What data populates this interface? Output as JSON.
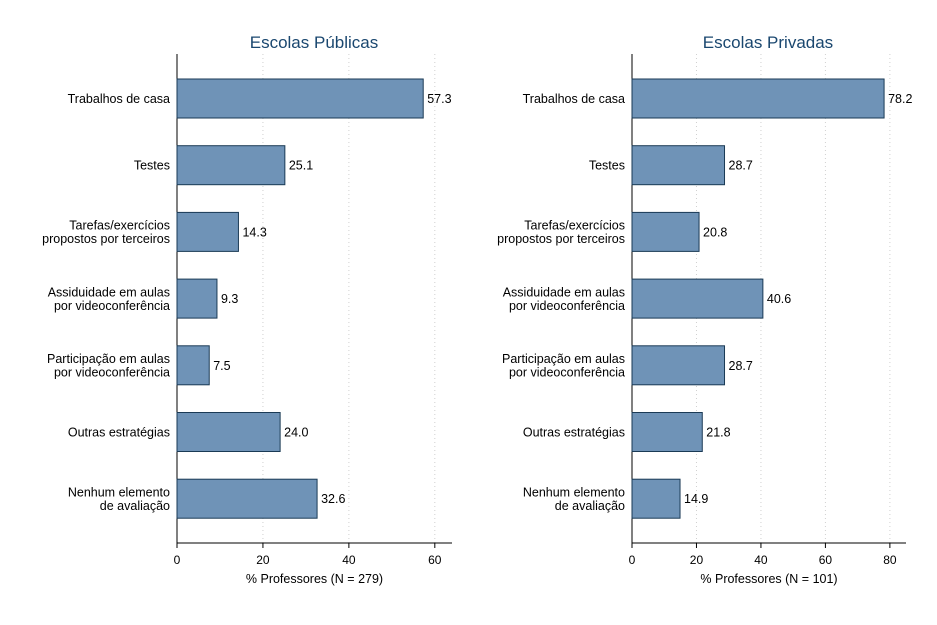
{
  "chart_data": [
    {
      "type": "bar",
      "orientation": "horizontal",
      "title": "Escolas Públicas",
      "xlabel": "% Professores (N = 279)",
      "categories": [
        [
          "Trabalhos de casa"
        ],
        [
          "Testes"
        ],
        [
          "Tarefas/exercícios",
          "propostos por terceiros"
        ],
        [
          "Assiduidade em aulas",
          "por videoconferência"
        ],
        [
          "Participação em aulas",
          "por videoconferência"
        ],
        [
          "Outras estratégias"
        ],
        [
          "Nenhum elemento",
          "de avaliação"
        ]
      ],
      "values": [
        57.3,
        25.1,
        14.3,
        9.3,
        7.5,
        24.0,
        32.6
      ],
      "value_labels": [
        "57.3",
        "25.1",
        "14.3",
        "9.3",
        "7.5",
        "24.0",
        "32.6"
      ],
      "xlim": [
        0,
        64
      ],
      "xticks": [
        0,
        20,
        40,
        60
      ],
      "grid": "vertical dotted",
      "bar_color": "#6f93b7"
    },
    {
      "type": "bar",
      "orientation": "horizontal",
      "title": "Escolas Privadas",
      "xlabel": "% Professores (N = 101)",
      "categories": [
        [
          "Trabalhos de casa"
        ],
        [
          "Testes"
        ],
        [
          "Tarefas/exercícios",
          "propostos por terceiros"
        ],
        [
          "Assiduidade em aulas",
          "por videoconferência"
        ],
        [
          "Participação em aulas",
          "por videoconferência"
        ],
        [
          "Outras estratégias"
        ],
        [
          "Nenhum elemento",
          "de avaliação"
        ]
      ],
      "values": [
        78.2,
        28.7,
        20.8,
        40.6,
        28.7,
        21.8,
        14.9
      ],
      "value_labels": [
        "78.2",
        "28.7",
        "20.8",
        "40.6",
        "28.7",
        "21.8",
        "14.9"
      ],
      "xlim": [
        0,
        85
      ],
      "xticks": [
        0,
        20,
        40,
        60,
        80
      ],
      "grid": "vertical dotted",
      "bar_color": "#6f93b7"
    }
  ]
}
